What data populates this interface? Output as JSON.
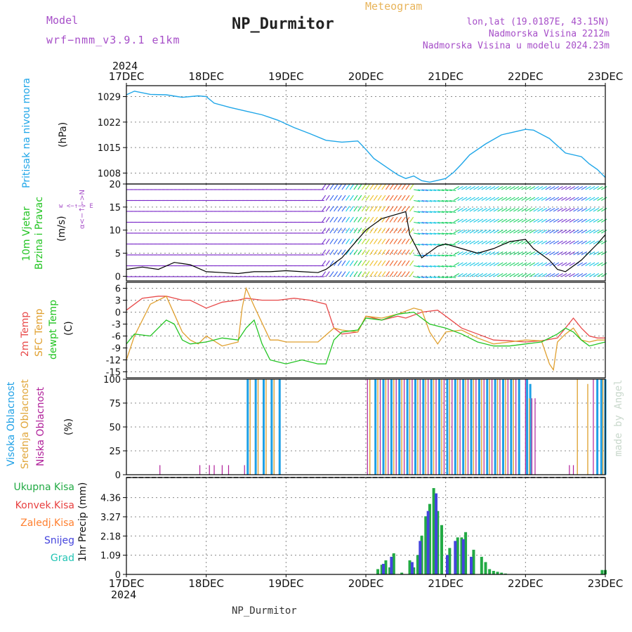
{
  "header": {
    "model_label": "Model",
    "model_name": "wrf−nmm_v3.9.1  e1km",
    "kind": "Meteogram",
    "station": "NP_Durmitor",
    "location": "lon,lat (19.0187E, 43.15N)",
    "elevation": "Nadmorska Visina 2212m",
    "model_elevation": "Nadmorska Visina u modelu 2024.23m",
    "year_top": "2024",
    "year_bottom": "2024",
    "footer": "NP_Durmitor",
    "credit": "made by Angel"
  },
  "panel_labels": {
    "pressure": [
      "Pritisak na nivou mora",
      "(hPa)"
    ],
    "wind": [
      "10m Vjetar",
      "Brzina i Pravac",
      "(m/s)"
    ],
    "wind_compass": "w <−↑−> E",
    "wind_compass_v": "α<−↑−>N",
    "temp": [
      "2m Temp",
      "SFC Temp",
      "dewpt Temp",
      "(C)"
    ],
    "cloud": [
      "Visoka Oblacnost",
      "Srednja Oblacnost",
      "Niska Oblacnost",
      "(%)"
    ],
    "precip_legend": [
      "Ukupna Kisa",
      "Konvek.Kisa",
      "Zaledj.Kisa",
      "Snijeg",
      "Grad"
    ],
    "precip_axis": "1hr Precip (mm)"
  },
  "colors": {
    "pressure": "#1fa6e8",
    "temp2m": "#e84a4a",
    "sfc": "#e0a030",
    "dewpt": "#22c422",
    "cloud_high": "#1ea0e6",
    "cloud_mid": "#e0a63a",
    "cloud_low": "#b0209a",
    "precip_total": "#22aa44",
    "precip_conv": "#e84040",
    "precip_frz": "#ff8030",
    "precip_snow": "#4444dd",
    "precip_grad": "#22c4b4",
    "grid": "#888888"
  },
  "chart_data": [
    {
      "type": "line",
      "panel": "pressure",
      "x_ticks": [
        "17DEC",
        "18DEC",
        "19DEC",
        "20DEC",
        "21DEC",
        "22DEC",
        "23DEC"
      ],
      "ylabel": "(hPa)",
      "ylim": [
        1005,
        1032
      ],
      "yticks": [
        1008,
        1015,
        1022,
        1029
      ],
      "grid": true,
      "series": [
        {
          "x": [
            0,
            0.1,
            0.3,
            0.5,
            0.7,
            0.9,
            1.0,
            1.1,
            1.3,
            1.5,
            1.7,
            1.9,
            2.1,
            2.3,
            2.5,
            2.7,
            2.9,
            3.0,
            3.1,
            3.3,
            3.4,
            3.5,
            3.6,
            3.7,
            3.8,
            3.9,
            4.0,
            4.1,
            4.2,
            4.3,
            4.5,
            4.7,
            4.9,
            5.0,
            5.1,
            5.3,
            5.5,
            5.7,
            5.8,
            5.9,
            6.0
          ],
          "y": [
            1029.5,
            1030.5,
            1029.6,
            1029.5,
            1028.8,
            1029.2,
            1029.0,
            1027.2,
            1026.0,
            1025.0,
            1024.0,
            1022.5,
            1020.5,
            1018.8,
            1017.0,
            1016.5,
            1016.8,
            1014.5,
            1012.0,
            1009.0,
            1007.5,
            1006.5,
            1007.2,
            1005.9,
            1005.5,
            1006.0,
            1006.5,
            1008.2,
            1010.5,
            1013.0,
            1016.0,
            1018.5,
            1019.5,
            1020.0,
            1019.8,
            1017.5,
            1013.5,
            1012.5,
            1010.5,
            1009.0,
            1006.8
          ]
        }
      ]
    },
    {
      "type": "line",
      "panel": "wind",
      "ylabel": "(m/s)",
      "ylim": [
        -1,
        20
      ],
      "yticks": [
        0,
        5,
        10,
        15,
        20
      ],
      "grid": true,
      "series": [
        {
          "name": "speed",
          "x": [
            0,
            0.2,
            0.4,
            0.6,
            0.8,
            1.0,
            1.2,
            1.4,
            1.6,
            1.8,
            2.0,
            2.2,
            2.4,
            2.5,
            2.7,
            2.9,
            3.0,
            3.2,
            3.4,
            3.5,
            3.55,
            3.7,
            3.9,
            4.0,
            4.2,
            4.4,
            4.6,
            4.8,
            5.0,
            5.1,
            5.3,
            5.4,
            5.5,
            5.7,
            5.9,
            6.0
          ],
          "y": [
            1.5,
            2.0,
            1.5,
            3.0,
            2.5,
            1.0,
            0.8,
            0.6,
            1.0,
            1.0,
            1.2,
            1.0,
            0.8,
            1.5,
            4.0,
            8.0,
            10.0,
            12.5,
            13.5,
            14.0,
            9.0,
            4.0,
            6.5,
            7.0,
            6.0,
            5.0,
            6.0,
            7.5,
            8.0,
            6.0,
            3.5,
            1.5,
            1.0,
            3.5,
            7.0,
            9.0
          ]
        }
      ]
    },
    {
      "type": "line",
      "panel": "temperature",
      "ylabel": "(C)",
      "ylim": [
        -16.5,
        7.5
      ],
      "yticks": [
        -15,
        -12,
        -9,
        -6,
        -3,
        0,
        3,
        6
      ],
      "grid": true,
      "series": [
        {
          "name": "2m Temp",
          "x": [
            0,
            0.1,
            0.2,
            0.4,
            0.5,
            0.7,
            0.8,
            1.0,
            1.2,
            1.4,
            1.5,
            1.7,
            1.9,
            2.1,
            2.3,
            2.5,
            2.6,
            2.7,
            2.9,
            3.0,
            3.2,
            3.4,
            3.5,
            3.7,
            3.9,
            4.0,
            4.2,
            4.4,
            4.6,
            4.8,
            5.0,
            5.2,
            5.4,
            5.5,
            5.6,
            5.7,
            5.8,
            5.9,
            6.0
          ],
          "y": [
            0.5,
            2.0,
            3.5,
            4.0,
            4.0,
            3.0,
            3.0,
            1.0,
            2.5,
            3.0,
            3.5,
            3.0,
            3.0,
            3.5,
            3.0,
            2.0,
            -4.0,
            -5.5,
            -5.0,
            -1.0,
            -2.0,
            -1.0,
            -1.5,
            0.0,
            0.5,
            -1.0,
            -4.0,
            -5.5,
            -7.0,
            -7.2,
            -7.5,
            -7.2,
            -6.5,
            -4.0,
            -1.5,
            -4.0,
            -6.0,
            -6.5,
            -6.5
          ]
        },
        {
          "name": "SFC Temp",
          "x": [
            0,
            0.1,
            0.3,
            0.5,
            0.7,
            0.8,
            0.9,
            1.0,
            1.2,
            1.4,
            1.45,
            1.5,
            1.6,
            1.8,
            1.9,
            2.0,
            2.2,
            2.4,
            2.6,
            2.7,
            2.9,
            3.0,
            3.2,
            3.4,
            3.6,
            3.7,
            3.8,
            3.9,
            4.0,
            4.2,
            4.4,
            4.6,
            4.8,
            5.0,
            5.2,
            5.3,
            5.35,
            5.4,
            5.5,
            5.6,
            5.7,
            5.8,
            5.9,
            6.0
          ],
          "y": [
            -12.0,
            -6.0,
            2.0,
            4.0,
            -5.0,
            -7.0,
            -8.0,
            -6.0,
            -8.5,
            -7.5,
            1.0,
            6.0,
            1.5,
            -7.0,
            -7.0,
            -7.5,
            -7.5,
            -7.5,
            -4.0,
            -4.5,
            -5.0,
            -1.0,
            -1.5,
            -0.5,
            1.0,
            0.5,
            -5.0,
            -8.0,
            -5.0,
            -4.5,
            -6.5,
            -8.0,
            -7.5,
            -7.0,
            -7.2,
            -13.0,
            -14.5,
            -7.5,
            -5.5,
            -4.0,
            -7.0,
            -7.5,
            -7.0,
            -7.0
          ]
        },
        {
          "name": "dewpt Temp",
          "x": [
            0,
            0.1,
            0.3,
            0.5,
            0.6,
            0.7,
            0.8,
            1.0,
            1.2,
            1.4,
            1.5,
            1.6,
            1.7,
            1.8,
            2.0,
            2.2,
            2.4,
            2.5,
            2.6,
            2.7,
            2.9,
            3.0,
            3.2,
            3.4,
            3.6,
            3.8,
            4.0,
            4.2,
            4.4,
            4.6,
            4.8,
            5.0,
            5.2,
            5.4,
            5.5,
            5.6,
            5.7,
            5.8,
            6.0
          ],
          "y": [
            -8.0,
            -5.5,
            -6.0,
            -2.0,
            -3.0,
            -7.0,
            -8.0,
            -7.5,
            -6.5,
            -7.0,
            -4.0,
            -2.0,
            -8.0,
            -12.0,
            -13.0,
            -12.0,
            -13.0,
            -13.0,
            -7.0,
            -5.0,
            -4.5,
            -1.5,
            -2.0,
            -0.5,
            0.0,
            -3.0,
            -4.0,
            -5.5,
            -7.5,
            -8.5,
            -8.5,
            -8.0,
            -7.5,
            -5.5,
            -4.0,
            -5.0,
            -7.0,
            -8.5,
            -7.5
          ]
        }
      ]
    },
    {
      "type": "bar",
      "panel": "cloud",
      "ylabel": "(%)",
      "ylim": [
        0,
        100
      ],
      "yticks": [
        0,
        25,
        50,
        75,
        100
      ],
      "grid": true,
      "series": [
        {
          "name": "Visoka Oblacnost",
          "x": [
            1.52,
            1.62,
            1.72,
            1.82,
            1.92,
            3.12,
            3.22,
            3.32,
            3.42,
            3.52,
            3.62,
            3.72,
            3.82,
            3.92,
            4.02,
            4.12,
            4.22,
            4.32,
            4.42,
            4.52,
            4.62,
            4.72,
            4.82,
            4.92,
            5.02,
            5.06,
            5.9,
            5.95,
            6.0
          ],
          "y": [
            100,
            100,
            100,
            100,
            100,
            100,
            100,
            100,
            100,
            100,
            100,
            100,
            100,
            100,
            100,
            100,
            100,
            100,
            100,
            100,
            100,
            100,
            100,
            100,
            100,
            95,
            100,
            100,
            100
          ]
        },
        {
          "name": "Srednja Oblacnost",
          "x": [
            1.55,
            1.65,
            1.75,
            1.85,
            3.05,
            3.15,
            3.25,
            3.35,
            3.45,
            3.55,
            3.65,
            3.75,
            3.85,
            3.95,
            4.05,
            4.15,
            4.25,
            4.35,
            4.45,
            4.55,
            4.65,
            4.75,
            4.85,
            5.05,
            5.65,
            5.78,
            5.97
          ],
          "y": [
            100,
            100,
            100,
            100,
            100,
            100,
            100,
            100,
            100,
            100,
            100,
            100,
            100,
            100,
            100,
            100,
            100,
            100,
            100,
            100,
            100,
            100,
            100,
            80,
            100,
            95,
            100
          ]
        },
        {
          "name": "Niska Oblacnost",
          "x": [
            0.42,
            0.92,
            1.04,
            1.1,
            1.2,
            1.28,
            1.48,
            3.02,
            3.18,
            3.28,
            3.38,
            3.48,
            3.58,
            3.68,
            3.78,
            3.88,
            3.98,
            4.08,
            4.18,
            4.28,
            4.38,
            4.48,
            4.58,
            4.68,
            4.78,
            4.88,
            5.0,
            5.08,
            5.12,
            5.55,
            5.6,
            5.85
          ],
          "y": [
            10,
            10,
            10,
            10,
            10,
            10,
            10,
            100,
            100,
            100,
            100,
            100,
            100,
            100,
            100,
            100,
            100,
            100,
            100,
            100,
            100,
            100,
            100,
            100,
            100,
            100,
            100,
            80,
            80,
            10,
            10,
            100
          ]
        }
      ]
    },
    {
      "type": "bar",
      "panel": "precipitation",
      "ylabel": "1hr Precip (mm)",
      "ylim": [
        0,
        5.5
      ],
      "yticks": [
        0,
        1.09,
        2.18,
        3.27,
        4.36
      ],
      "grid": true,
      "series": [
        {
          "name": "Ukupna Kisa",
          "x": [
            3.15,
            3.2,
            3.25,
            3.3,
            3.35,
            3.45,
            3.55,
            3.6,
            3.65,
            3.7,
            3.75,
            3.8,
            3.85,
            3.9,
            3.95,
            4.05,
            4.15,
            4.2,
            4.25,
            4.35,
            4.45,
            4.5,
            4.55,
            4.6,
            4.65,
            4.7,
            4.75,
            5.96,
            6.0
          ],
          "y": [
            0.3,
            0.55,
            0.8,
            0.4,
            1.2,
            0.1,
            0.8,
            0.4,
            1.1,
            2.2,
            3.3,
            4.0,
            4.9,
            3.6,
            2.8,
            1.5,
            2.1,
            2.1,
            2.4,
            1.4,
            1.0,
            0.7,
            0.3,
            0.2,
            0.15,
            0.1,
            0.05,
            0.25,
            0.25
          ]
        },
        {
          "name": "Snijeg",
          "x": [
            3.22,
            3.32,
            3.58,
            3.68,
            3.78,
            3.88,
            4.02,
            4.12,
            4.22,
            4.32
          ],
          "y": [
            0.6,
            1.0,
            0.7,
            1.9,
            3.6,
            4.6,
            1.1,
            1.9,
            2.0,
            1.0
          ]
        }
      ]
    }
  ]
}
